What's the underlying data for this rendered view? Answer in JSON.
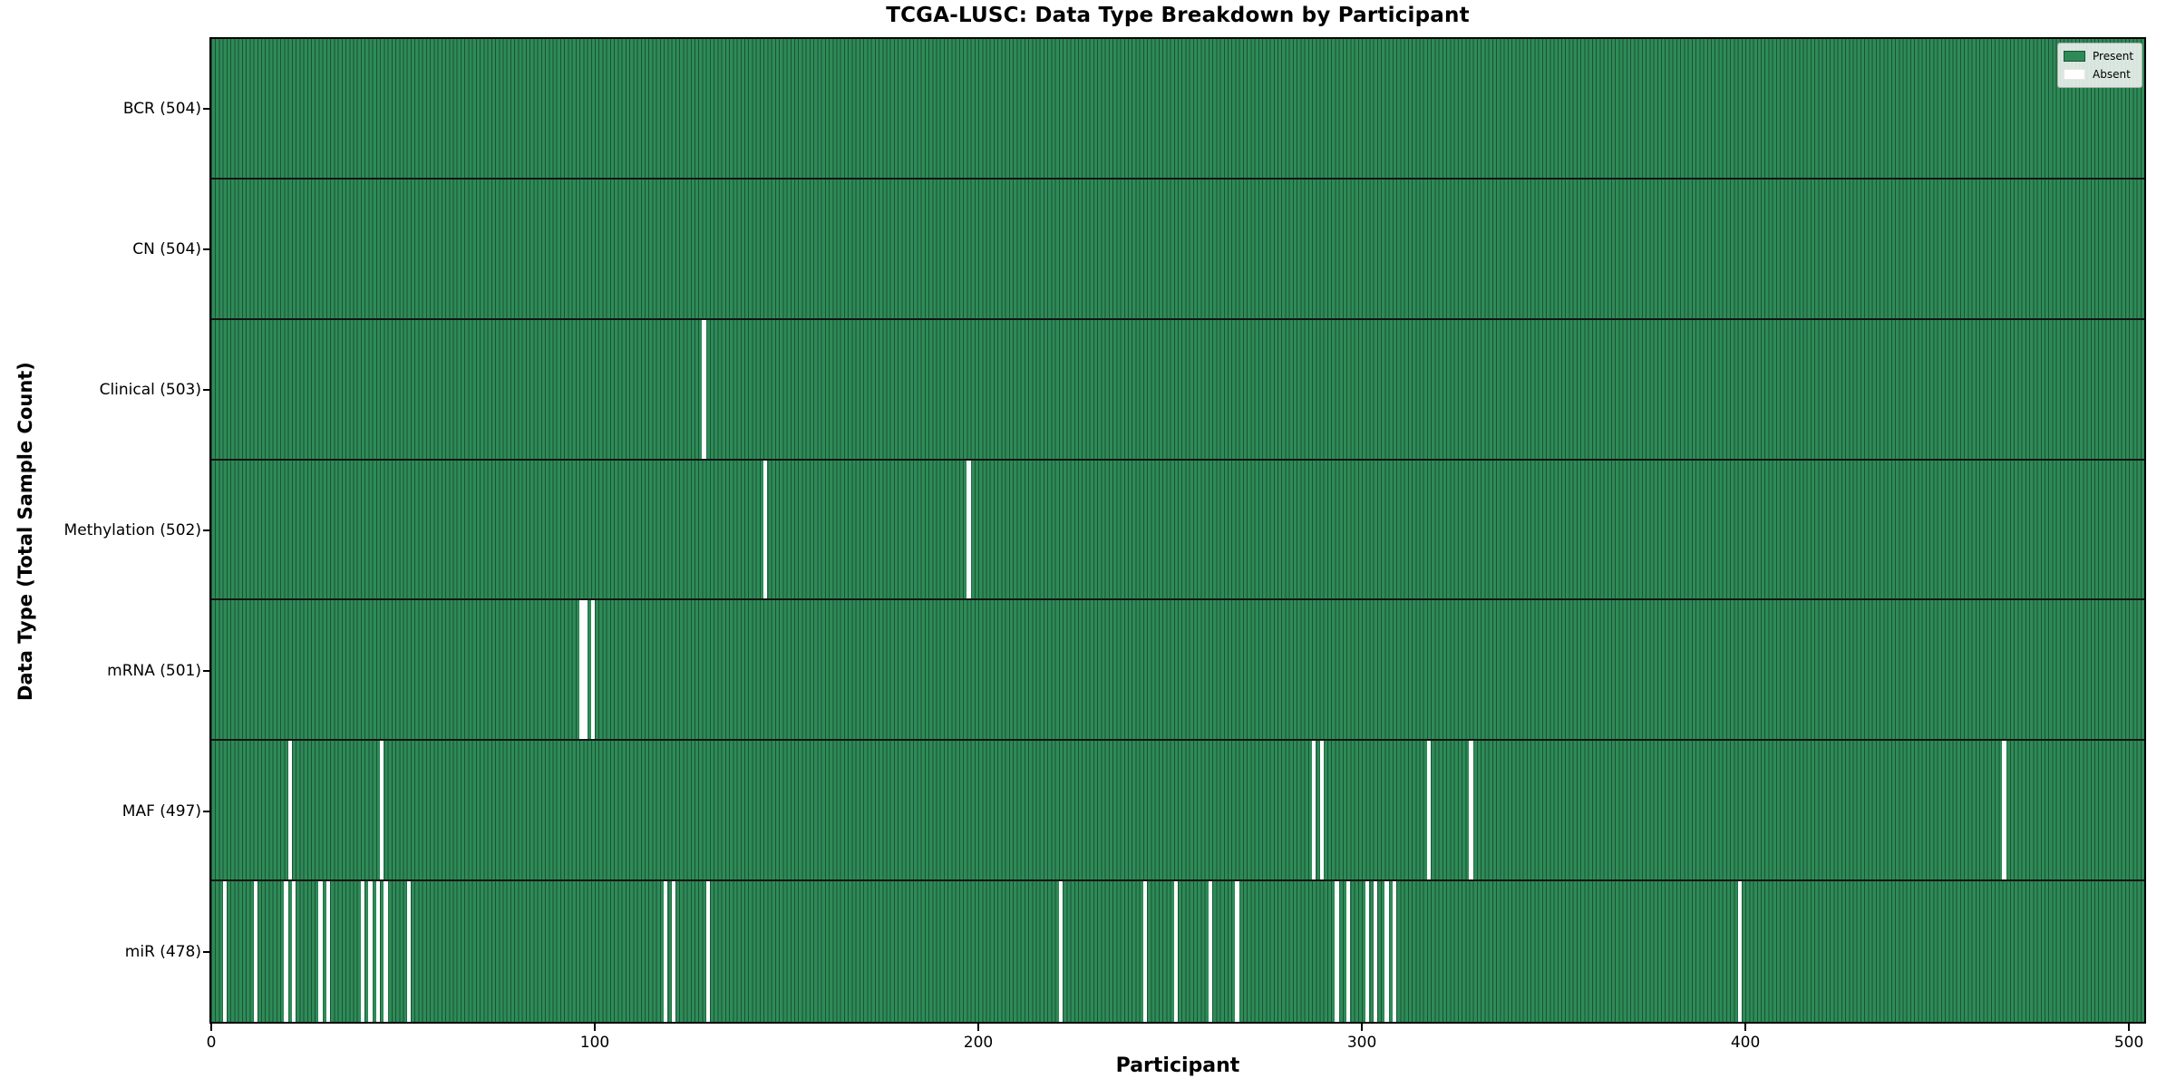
{
  "title": "TCGA-LUSC: Data Type Breakdown by Participant",
  "x_axis_label": "Participant",
  "y_axis_label": "Data Type (Total Sample Count)",
  "legend": {
    "present_label": "Present",
    "absent_label": "Absent"
  },
  "colors": {
    "present": "#2e8b57",
    "present_edge": "#1b5236",
    "absent": "#ffffff",
    "row_separator": "#151515",
    "spine": "#000000"
  },
  "chart_data": {
    "type": "heatmap",
    "title": "TCGA-LUSC: Data Type Breakdown by Participant",
    "xlabel": "Participant",
    "ylabel": "Data Type (Total Sample Count)",
    "legend": [
      "Present",
      "Absent"
    ],
    "legend_position": "upper right",
    "grid": false,
    "x_ticks": [
      0,
      100,
      200,
      300,
      400,
      500
    ],
    "x_range": [
      0,
      504
    ],
    "total_participants": 504,
    "rows": [
      {
        "name": "bcr",
        "label": "BCR (504)",
        "present_count": 504,
        "absent_participants": []
      },
      {
        "name": "cn",
        "label": "CN (504)",
        "present_count": 504,
        "absent_participants": []
      },
      {
        "name": "clinical",
        "label": "Clinical (503)",
        "present_count": 503,
        "absent_participants": [
          128
        ]
      },
      {
        "name": "methylation",
        "label": "Methylation (502)",
        "present_count": 502,
        "absent_participants": [
          144,
          197
        ]
      },
      {
        "name": "mrna",
        "label": "mRNA (501)",
        "present_count": 501,
        "absent_participants": [
          96,
          97,
          99
        ]
      },
      {
        "name": "maf",
        "label": "MAF (497)",
        "present_count": 497,
        "absent_participants": [
          20,
          44,
          287,
          289,
          317,
          328,
          467
        ]
      },
      {
        "name": "mir",
        "label": "miR (478)",
        "present_count": 478,
        "absent_participants": [
          3,
          11,
          19,
          21,
          28,
          30,
          39,
          41,
          43,
          45,
          51,
          118,
          120,
          129,
          221,
          243,
          251,
          260,
          267,
          293,
          296,
          301,
          303,
          306,
          308,
          398
        ]
      }
    ]
  }
}
